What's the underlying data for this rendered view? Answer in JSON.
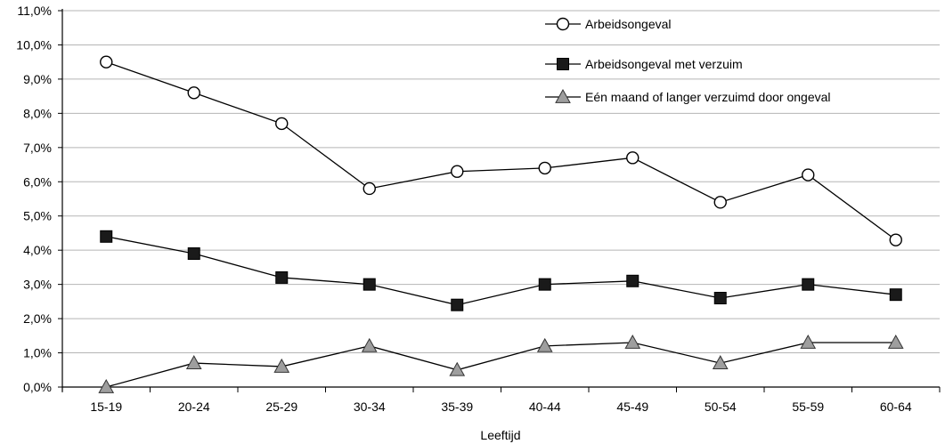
{
  "chart_data": {
    "type": "line",
    "categories": [
      "15-19",
      "20-24",
      "25-29",
      "30-34",
      "35-39",
      "40-44",
      "45-49",
      "50-54",
      "55-59",
      "60-64"
    ],
    "xlabel": "Leeftijd",
    "ylabel": "",
    "ylim": [
      0,
      11
    ],
    "y_ticks": [
      "0,0%",
      "1,0%",
      "2,0%",
      "3,0%",
      "4,0%",
      "5,0%",
      "6,0%",
      "7,0%",
      "8,0%",
      "9,0%",
      "10,0%",
      "11,0%"
    ],
    "grid": "horizontal",
    "legend_position": "top-right",
    "series": [
      {
        "name": "Arbeidsongeval",
        "marker": "open-circle",
        "color": "#000000",
        "values": [
          9.5,
          8.6,
          7.7,
          5.8,
          6.3,
          6.4,
          6.7,
          5.4,
          6.2,
          4.3
        ]
      },
      {
        "name": "Arbeidsongeval met verzuim",
        "marker": "filled-square",
        "color": "#000000",
        "values": [
          4.4,
          3.9,
          3.2,
          3.0,
          2.4,
          3.0,
          3.1,
          2.6,
          3.0,
          2.7
        ]
      },
      {
        "name": "Eén maand of langer verzuimd door ongeval",
        "marker": "gray-triangle",
        "color": "#9e9e9e",
        "values": [
          0.0,
          0.7,
          0.6,
          1.2,
          0.5,
          1.2,
          1.3,
          0.7,
          1.3,
          1.3
        ]
      }
    ]
  }
}
